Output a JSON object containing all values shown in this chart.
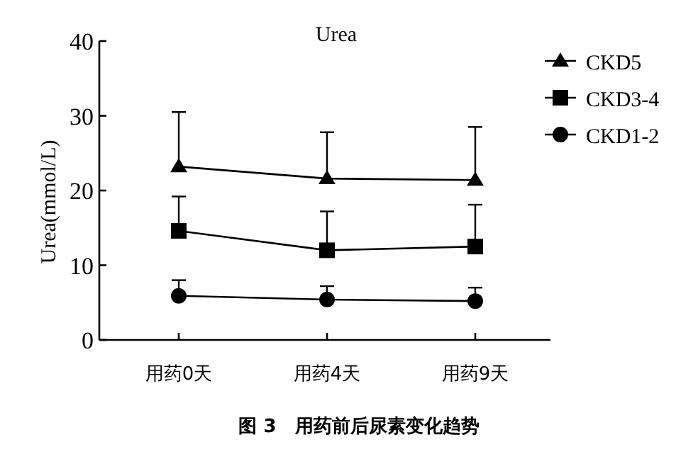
{
  "chart_data": {
    "type": "line",
    "title": "Urea",
    "ylabel": "Urea(mmol/L)",
    "categories": [
      "用药0天",
      "用药4天",
      "用药9天"
    ],
    "series": [
      {
        "name": "CKD5",
        "color": "#000000",
        "marker": "triangle",
        "values": [
          23.2,
          21.6,
          21.4
        ],
        "errors": [
          [
            23.2,
            30.5
          ],
          [
            21.6,
            27.8
          ],
          [
            21.4,
            28.5
          ]
        ]
      },
      {
        "name": "CKD3-4",
        "color": "#000000",
        "marker": "square",
        "values": [
          14.6,
          12.0,
          12.5
        ],
        "errors": [
          [
            14.6,
            19.2
          ],
          [
            12.0,
            17.2
          ],
          [
            12.5,
            18.1
          ]
        ]
      },
      {
        "name": "CKD1-2",
        "color": "#000000",
        "marker": "circle",
        "values": [
          5.9,
          5.4,
          5.2
        ],
        "errors": [
          [
            5.9,
            8.0
          ],
          [
            5.4,
            7.2
          ],
          [
            5.2,
            7.0
          ]
        ]
      }
    ],
    "ylim": [
      0,
      40
    ],
    "yticks": [
      0,
      10,
      20,
      30,
      40
    ],
    "grid": false,
    "legend": "top right",
    "line_style": "solid",
    "annotations": [
      "图 3　用药前后尿素变化趋势"
    ]
  }
}
